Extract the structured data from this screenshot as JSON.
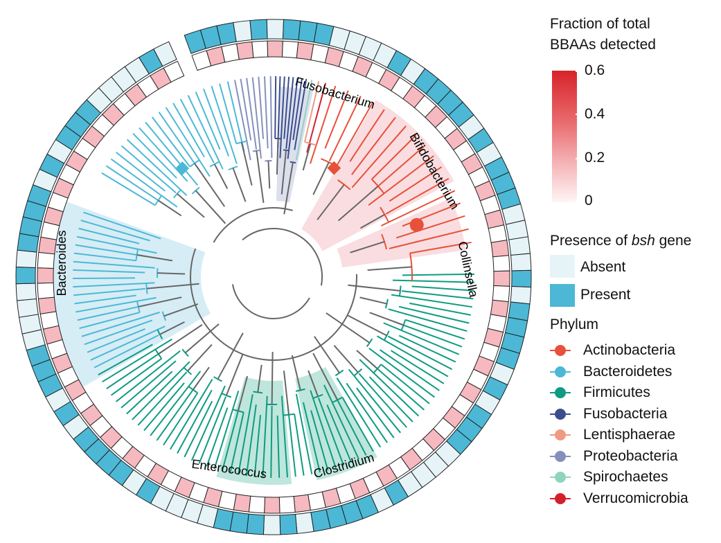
{
  "legend": {
    "fraction_title_line1": "Fraction of total",
    "fraction_title_line2": "BBAAs detected",
    "scale_ticks": [
      "0.6",
      "0.4",
      "0.2",
      "0"
    ],
    "bsh_title_prefix": "Presence of ",
    "bsh_title_italic": "bsh",
    "bsh_title_suffix": " gene",
    "absent_label": "Absent",
    "present_label": "Present",
    "absent_color": "#e6f4f8",
    "present_color": "#4cb8d6",
    "phylum_title": "Phylum",
    "phyla": [
      {
        "name": "Actinobacteria",
        "color": "#e8503a"
      },
      {
        "name": "Bacteroidetes",
        "color": "#4cb8d6"
      },
      {
        "name": "Firmicutes",
        "color": "#0e9b82"
      },
      {
        "name": "Fusobacteria",
        "color": "#3b4d8e"
      },
      {
        "name": "Lentisphaerae",
        "color": "#ef9a82"
      },
      {
        "name": "Proteobacteria",
        "color": "#8390bb"
      },
      {
        "name": "Spirochaetes",
        "color": "#8fd3c0"
      },
      {
        "name": "Verrucomicrobia",
        "color": "#d3202a"
      }
    ]
  },
  "tree": {
    "clade_labels": {
      "bacteroides": "Bacteroides",
      "fusobacterium": "Fusobacterium",
      "bifidobacterium": "Bifidobacterium",
      "collinsella": "Collinsella",
      "enterococcus": "Enterococcus",
      "clostridium": "Clostridium"
    },
    "internal_branch_color": "#666666",
    "clades": [
      {
        "key": "bacteroides",
        "phylum": "Bacteroidetes",
        "color": "#4cb8d6",
        "highlight": "#d6edf6"
      },
      {
        "key": "fusobacterium",
        "phylum": "Fusobacteria",
        "color": "#3b4d8e",
        "highlight": "#dcdfec"
      },
      {
        "key": "bifidobacterium",
        "phylum": "Actinobacteria",
        "color": "#e8503a",
        "highlight": "#f9dde0"
      },
      {
        "key": "collinsella",
        "phylum": "Actinobacteria",
        "color": "#e8503a",
        "highlight": "#f9dde0"
      },
      {
        "key": "enterococcus",
        "phylum": "Firmicutes",
        "color": "#0e9b82",
        "highlight": "#bfe6dc"
      },
      {
        "key": "clostridium",
        "phylum": "Firmicutes",
        "color": "#0e9b82",
        "highlight": "#bfe6dc"
      }
    ]
  }
}
